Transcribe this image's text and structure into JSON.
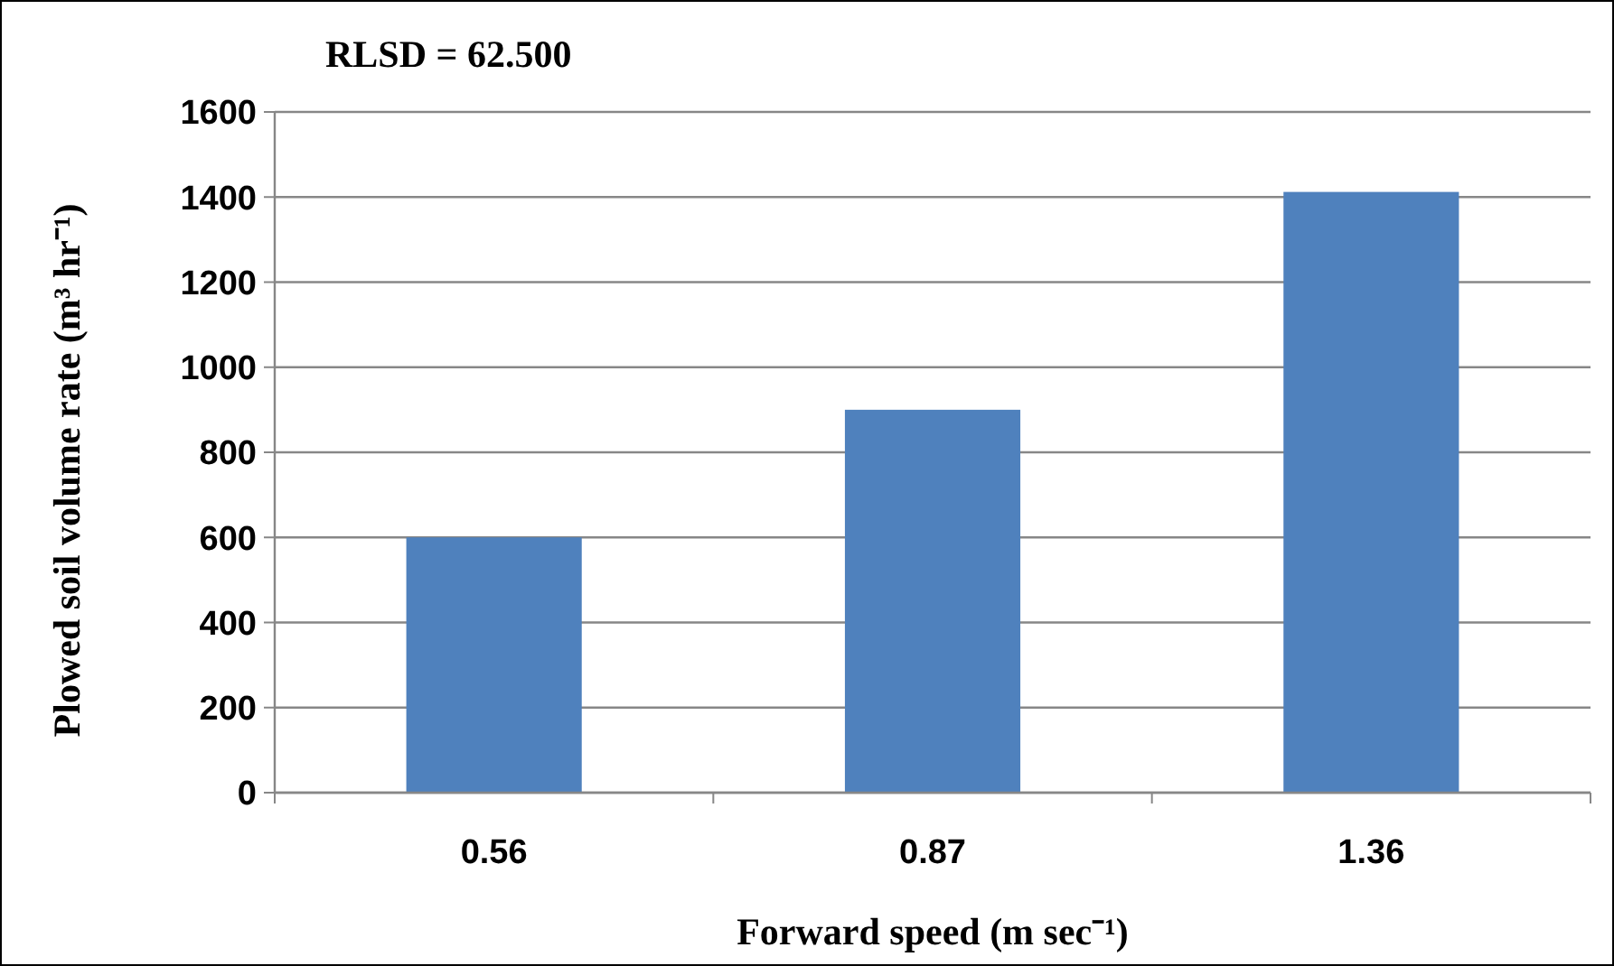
{
  "chart_data": {
    "type": "bar",
    "annotations": [
      "RLSD = 62.500"
    ],
    "xlabel": "Forward speed (m sec⁻¹)",
    "ylabel": "Plowed soil volume rate (m³ hr⁻¹)",
    "categories": [
      "0.56",
      "0.87",
      "1.36"
    ],
    "values": [
      600,
      900,
      1412
    ],
    "color": "#4f81bd",
    "ylim": [
      0,
      1600
    ],
    "yticks": [
      0,
      200,
      400,
      600,
      800,
      1000,
      1200,
      1400,
      1600
    ],
    "grid": "y"
  }
}
